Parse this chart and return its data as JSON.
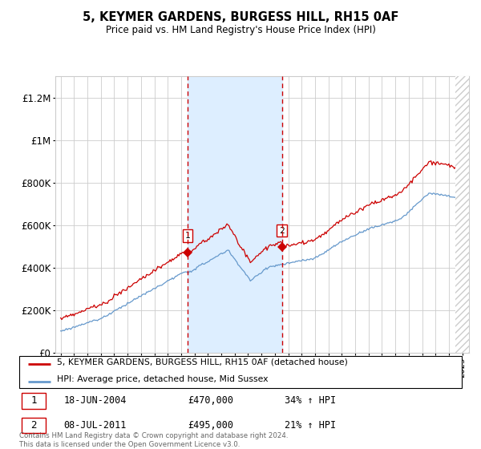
{
  "title": "5, KEYMER GARDENS, BURGESS HILL, RH15 0AF",
  "subtitle": "Price paid vs. HM Land Registry's House Price Index (HPI)",
  "legend_line1": "5, KEYMER GARDENS, BURGESS HILL, RH15 0AF (detached house)",
  "legend_line2": "HPI: Average price, detached house, Mid Sussex",
  "table_rows": [
    {
      "num": "1",
      "date": "18-JUN-2004",
      "price": "£470,000",
      "hpi": "34% ↑ HPI"
    },
    {
      "num": "2",
      "date": "08-JUL-2011",
      "price": "£495,000",
      "hpi": "21% ↑ HPI"
    }
  ],
  "footnote1": "Contains HM Land Registry data © Crown copyright and database right 2024.",
  "footnote2": "This data is licensed under the Open Government Licence v3.0.",
  "red_color": "#cc0000",
  "blue_color": "#6699cc",
  "shade_color": "#ddeeff",
  "dashed_color": "#cc0000",
  "sale1_year": 2004.47,
  "sale2_year": 2011.52,
  "sale1_price": 470000,
  "sale2_price": 495000,
  "ylim_max": 1300000,
  "yticks": [
    0,
    200000,
    400000,
    600000,
    800000,
    1000000,
    1200000
  ],
  "ytick_labels": [
    "£0",
    "£200K",
    "£400K",
    "£600K",
    "£800K",
    "£1M",
    "£1.2M"
  ],
  "bg_color": "#f8f8f8"
}
